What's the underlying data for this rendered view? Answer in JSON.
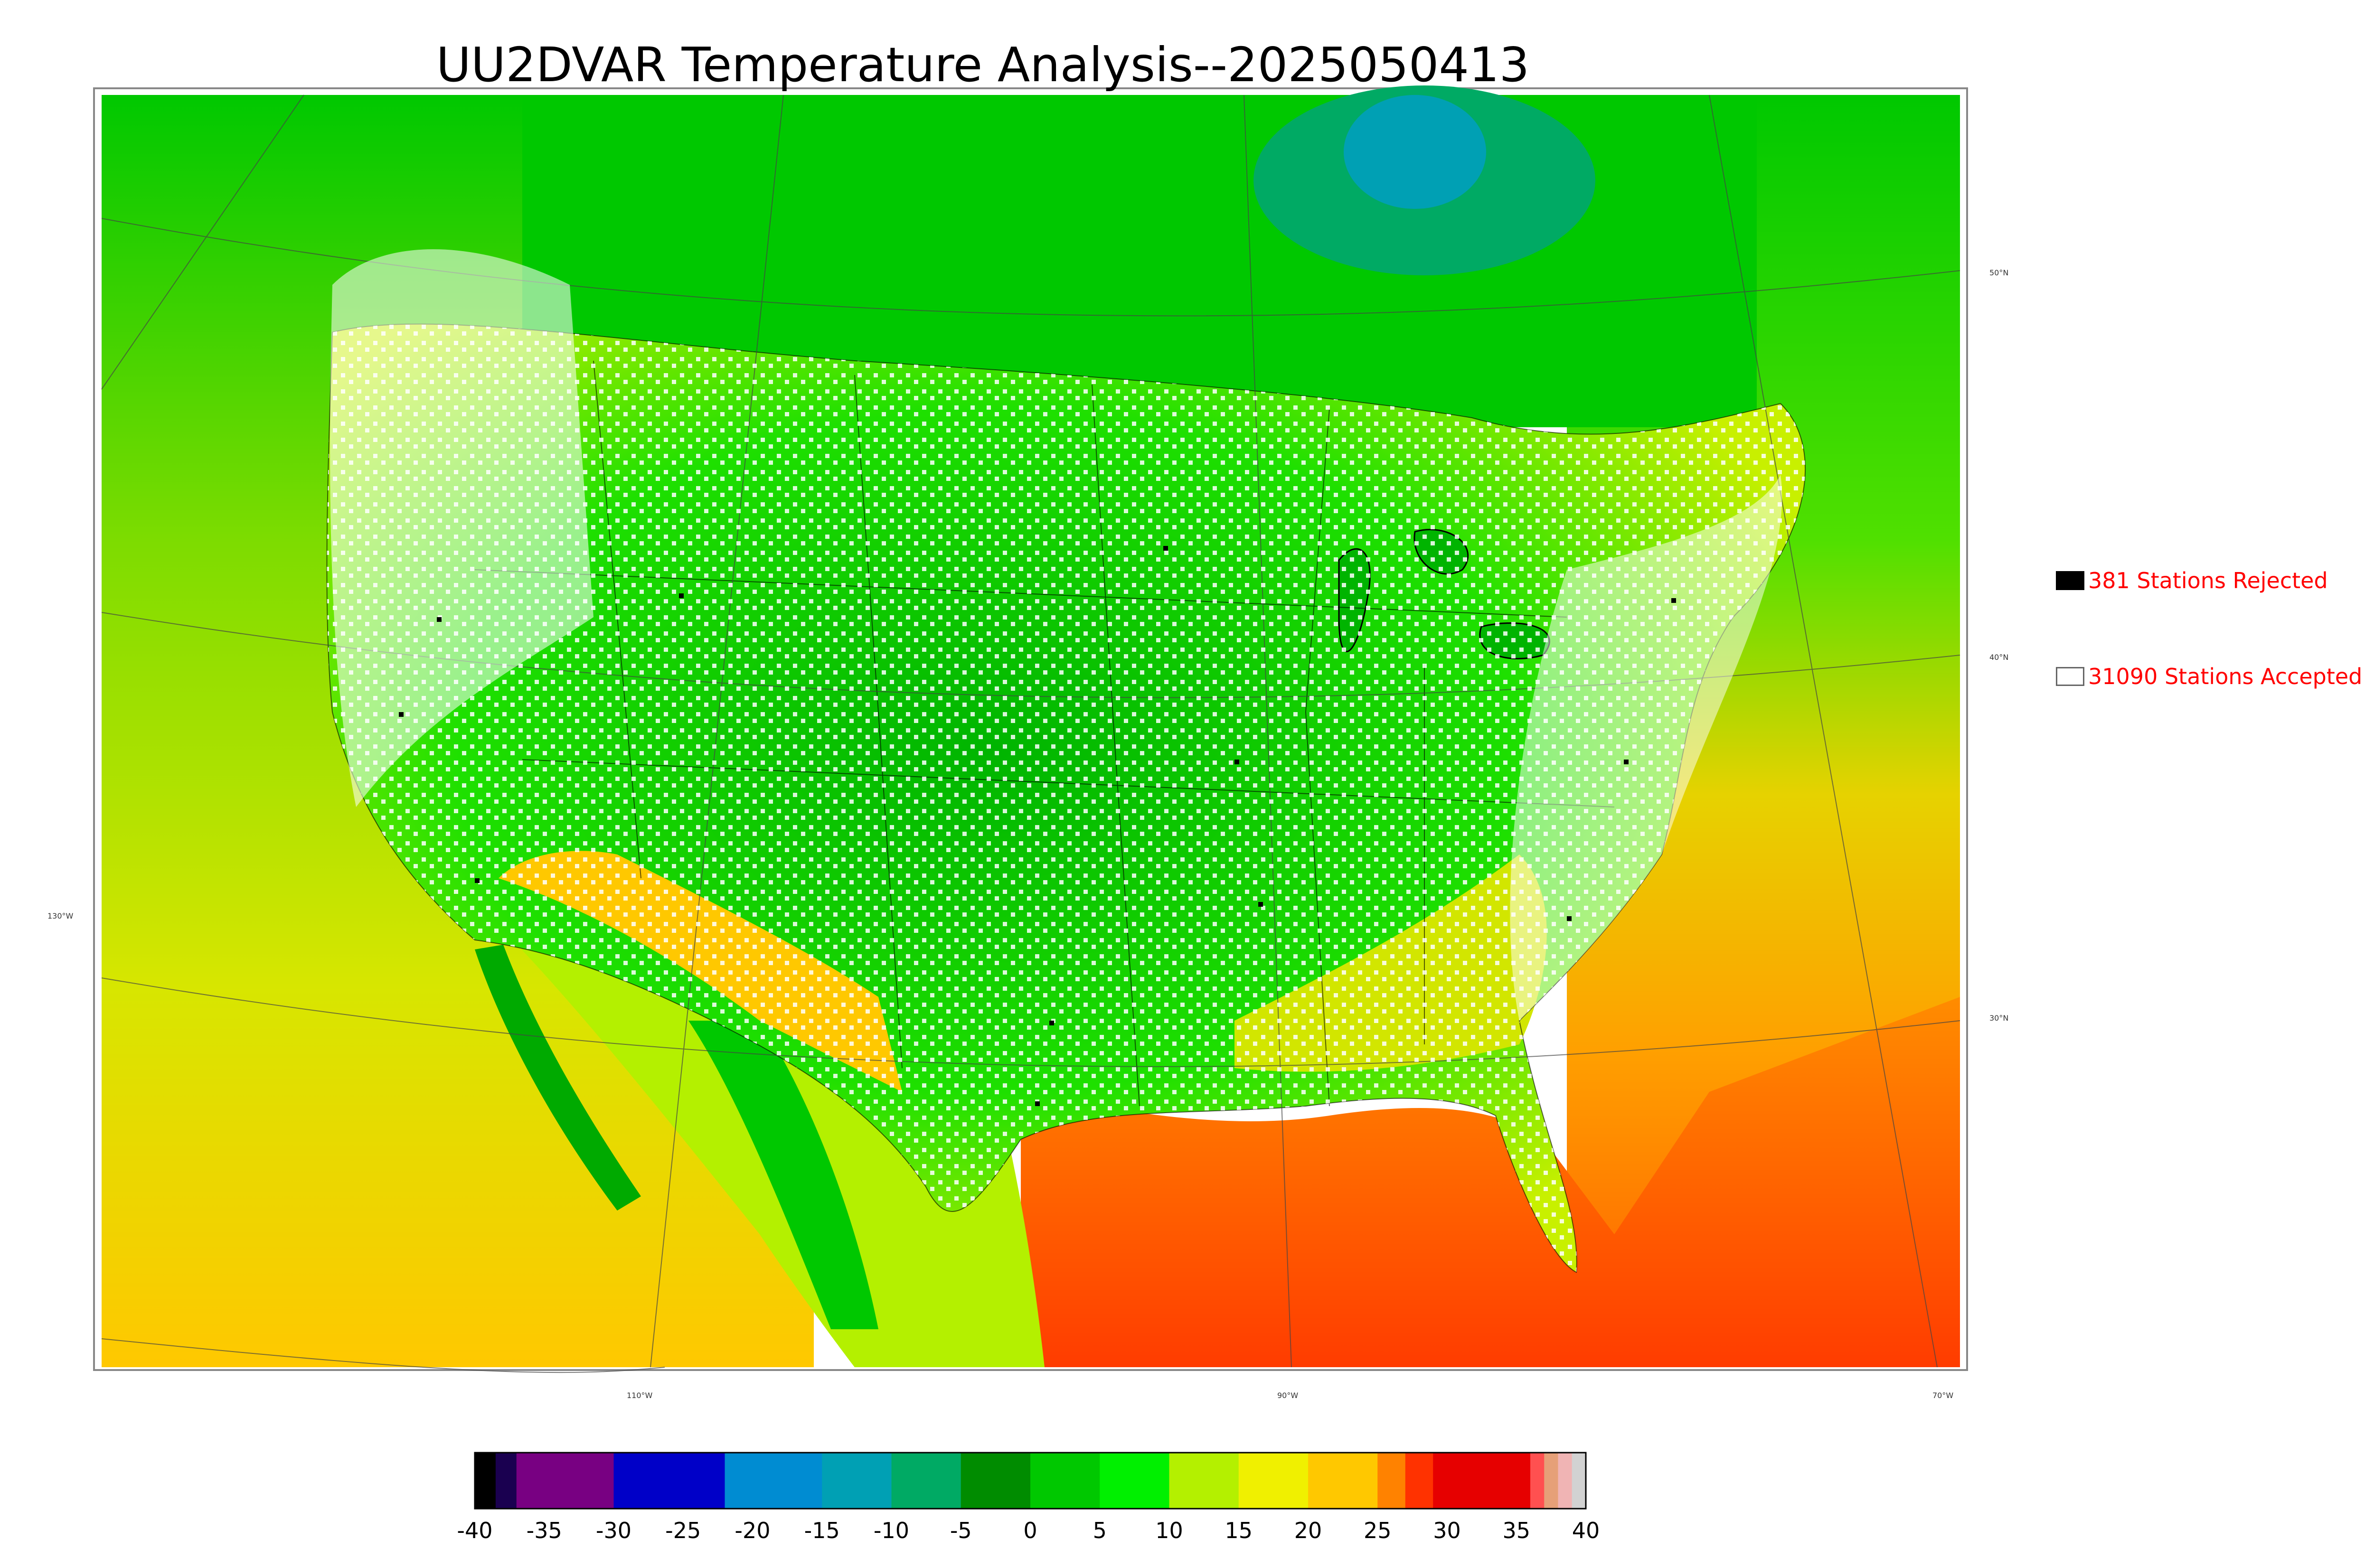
{
  "title": "UU2DVAR Temperature Analysis--2025050413",
  "map": {
    "lat_labels": [
      "50°N",
      "40°N",
      "30°N"
    ],
    "lon_labels": [
      "130°W",
      "110°W",
      "90°W",
      "70°W"
    ]
  },
  "legend": {
    "rejected": {
      "label": "381 Stations Rejected",
      "color": "#000000"
    },
    "accepted": {
      "label": "31090 Stations Accepted",
      "color": "#ffffff"
    }
  },
  "colorbar": {
    "min": -40,
    "max": 40,
    "ticks": [
      "-40",
      "-35",
      "-30",
      "-25",
      "-20",
      "-15",
      "-10",
      "-5",
      "0",
      "5",
      "10",
      "15",
      "20",
      "25",
      "30",
      "35",
      "40"
    ],
    "stops": [
      {
        "from": -40,
        "to": -38.5,
        "color": "#000000"
      },
      {
        "from": -38.5,
        "to": -37,
        "color": "#1a0050"
      },
      {
        "from": -37,
        "to": -30,
        "color": "#780082"
      },
      {
        "from": -30,
        "to": -22,
        "color": "#0000c8"
      },
      {
        "from": -22,
        "to": -15,
        "color": "#008cd2"
      },
      {
        "from": -15,
        "to": -10,
        "color": "#00a0b4"
      },
      {
        "from": -10,
        "to": -5,
        "color": "#00aa64"
      },
      {
        "from": -5,
        "to": 0,
        "color": "#008c00"
      },
      {
        "from": 0,
        "to": 5,
        "color": "#00c800"
      },
      {
        "from": 5,
        "to": 10,
        "color": "#00f000"
      },
      {
        "from": 10,
        "to": 15,
        "color": "#b4f000"
      },
      {
        "from": 15,
        "to": 20,
        "color": "#f0f000"
      },
      {
        "from": 20,
        "to": 25,
        "color": "#ffc800"
      },
      {
        "from": 25,
        "to": 27,
        "color": "#ff8200"
      },
      {
        "from": 27,
        "to": 29,
        "color": "#ff3200"
      },
      {
        "from": 29,
        "to": 36,
        "color": "#e60000"
      },
      {
        "from": 36,
        "to": 37,
        "color": "#ff5050"
      },
      {
        "from": 37,
        "to": 38,
        "color": "#e6a078"
      },
      {
        "from": 38,
        "to": 39,
        "color": "#f0b4b4"
      },
      {
        "from": 39,
        "to": 40,
        "color": "#d2d2d2"
      }
    ]
  }
}
